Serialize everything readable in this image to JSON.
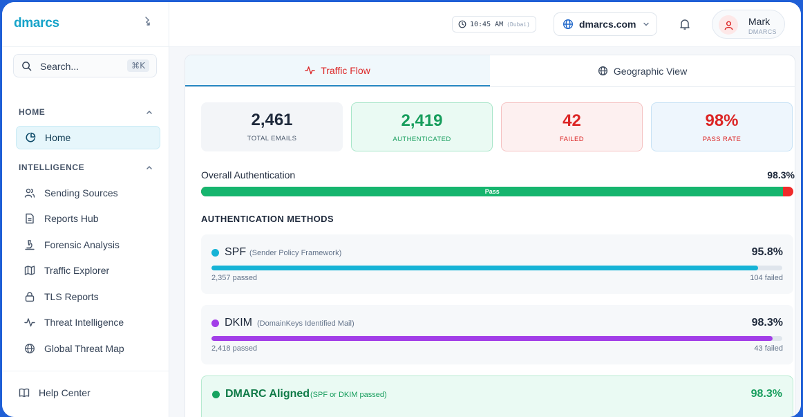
{
  "sidebar": {
    "logo": "dmarcs",
    "search": {
      "placeholder": "Search...",
      "shortcut": "⌘K"
    },
    "sections": [
      {
        "title": "HOME",
        "items": [
          {
            "label": "Home",
            "icon": "pie-chart-icon",
            "active": true
          }
        ]
      },
      {
        "title": "INTELLIGENCE",
        "items": [
          {
            "label": "Sending Sources",
            "icon": "users-icon"
          },
          {
            "label": "Reports Hub",
            "icon": "file-text-icon"
          },
          {
            "label": "Forensic Analysis",
            "icon": "microscope-icon"
          },
          {
            "label": "Traffic Explorer",
            "icon": "map-icon"
          },
          {
            "label": "TLS Reports",
            "icon": "lock-icon"
          },
          {
            "label": "Threat Intelligence",
            "icon": "activity-icon"
          },
          {
            "label": "Global Threat Map",
            "icon": "globe-icon"
          }
        ]
      }
    ],
    "footer": {
      "label": "Help Center",
      "icon": "book-icon"
    }
  },
  "header": {
    "time": "10:45 AM",
    "timezone": "(Dubai)",
    "domain": "dmarcs.com",
    "user": {
      "name": "Mark",
      "org": "DMARCS"
    }
  },
  "tabs": [
    {
      "label": "Traffic Flow",
      "icon": "activity-icon",
      "active": true
    },
    {
      "label": "Geographic View",
      "icon": "globe-icon",
      "active": false
    }
  ],
  "stats": [
    {
      "value": "2,461",
      "label": "TOTAL EMAILS"
    },
    {
      "value": "2,419",
      "label": "AUTHENTICATED"
    },
    {
      "value": "42",
      "label": "FAILED"
    },
    {
      "value": "98%",
      "label": "PASS RATE"
    }
  ],
  "overall": {
    "label": "Overall Authentication",
    "percent": "98.3%",
    "pass_fraction": 0.983,
    "bar_label": "Pass"
  },
  "methods_title": "AUTHENTICATION METHODS",
  "methods": [
    {
      "name": "SPF",
      "desc": "(Sender Policy Framework)",
      "percent": "95.8%",
      "fraction": 0.958,
      "passed": "2,357 passed",
      "failed": "104 failed",
      "color": "#16b3d6"
    },
    {
      "name": "DKIM",
      "desc": "(DomainKeys Identified Mail)",
      "percent": "98.3%",
      "fraction": 0.983,
      "passed": "2,418 passed",
      "failed": "43 failed",
      "color": "#a23ee8"
    },
    {
      "name": "DMARC Aligned",
      "desc": "(SPF or DKIM passed)",
      "percent": "98.3%",
      "fraction": 0.983,
      "passed": "",
      "failed": "",
      "color": "#16a35f"
    }
  ],
  "colors": {
    "accent": "#16a3c9",
    "pass": "#16b56e",
    "fail": "#ef2b2b"
  }
}
